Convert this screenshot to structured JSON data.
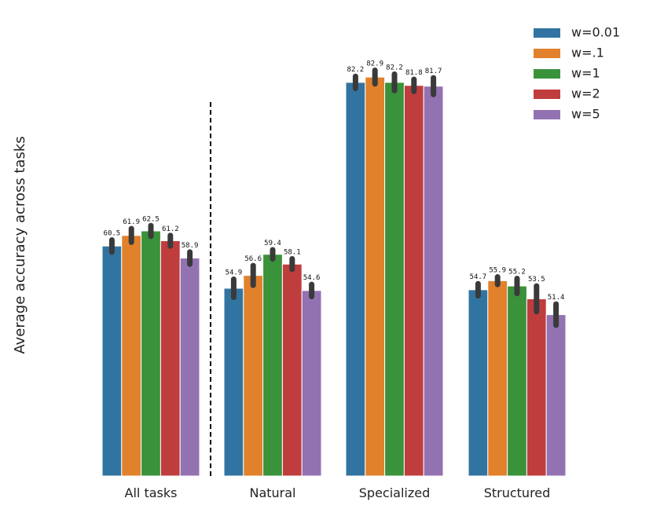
{
  "chart_data": {
    "type": "bar",
    "title": "",
    "xlabel": "",
    "ylabel": "Average accuracy across tasks",
    "ylim": [
      30,
      90
    ],
    "grid": false,
    "legend_position": "top-right",
    "categories": [
      "All tasks",
      "Natural",
      "Specialized",
      "Structured"
    ],
    "series": [
      {
        "name": "w=0.01",
        "color": "#3274a1",
        "values": [
          60.5,
          54.9,
          82.2,
          54.7
        ],
        "err": [
          0.8,
          1.2,
          0.8,
          0.8
        ]
      },
      {
        "name": "w=.1",
        "color": "#e1812c",
        "values": [
          61.9,
          56.6,
          82.9,
          55.9
        ],
        "err": [
          0.9,
          1.3,
          0.9,
          0.5
        ]
      },
      {
        "name": "w=1",
        "color": "#3a923a",
        "values": [
          62.5,
          59.4,
          82.2,
          55.2
        ],
        "err": [
          0.7,
          0.6,
          1.1,
          1.0
        ]
      },
      {
        "name": "w=2",
        "color": "#c03d3e",
        "values": [
          61.2,
          58.1,
          81.8,
          53.5
        ],
        "err": [
          0.7,
          0.7,
          0.8,
          1.7
        ]
      },
      {
        "name": "w=5",
        "color": "#9372b2",
        "values": [
          58.9,
          54.6,
          81.7,
          51.4
        ],
        "err": [
          0.8,
          0.8,
          1.1,
          1.4
        ]
      }
    ],
    "data_labels": [
      [
        "60.5",
        "61.9",
        "62.5",
        "61.2",
        "58.9"
      ],
      [
        "54.9",
        "56.6",
        "59.4",
        "58.1",
        "54.6"
      ],
      [
        "82.2",
        "82.9",
        "82.2",
        "81.8",
        "81.7"
      ],
      [
        "54.7",
        "55.9",
        "55.2",
        "53.5",
        "51.4"
      ]
    ],
    "separator_after_category": "All tasks"
  }
}
